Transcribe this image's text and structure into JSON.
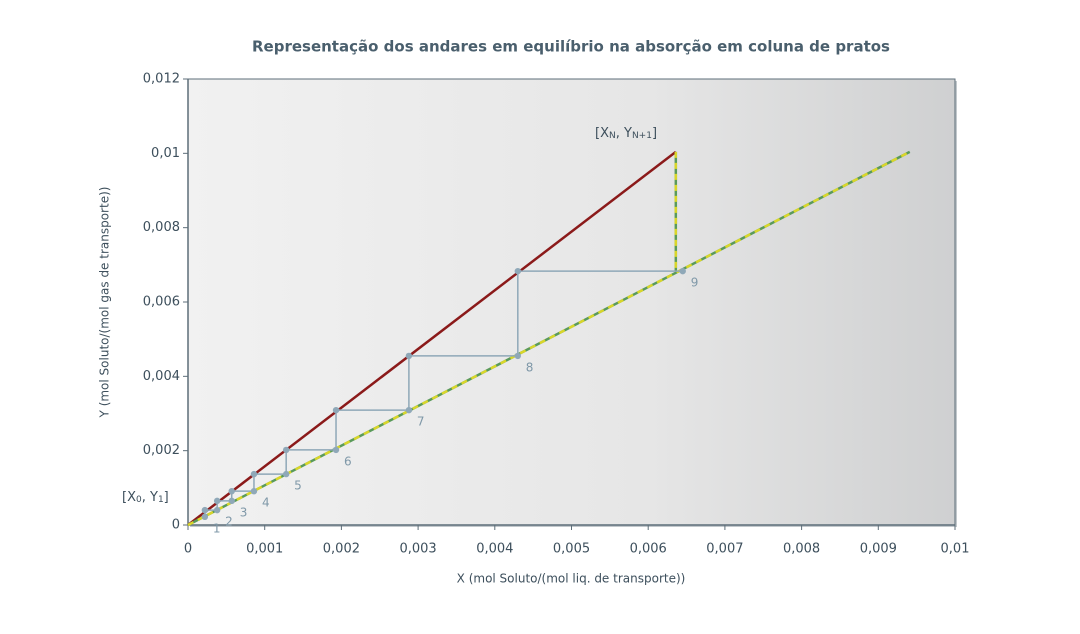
{
  "chart_data": {
    "type": "line",
    "title": "Representação dos andares em equilíbrio na absorção em coluna de pratos",
    "xlabel": "X (mol Soluto/(mol liq. de transporte))",
    "ylabel": "Y (mol Soluto/(mol gas de transporte))",
    "xlim": [
      0,
      0.01
    ],
    "ylim": [
      0,
      0.012
    ],
    "xticks": [
      0,
      {
        "value": 0.001,
        "label": "0,001"
      },
      {
        "value": 0.002,
        "label": "0,002"
      },
      {
        "value": 0.003,
        "label": "0,003"
      },
      {
        "value": 0.004,
        "label": "0,004"
      },
      {
        "value": 0.005,
        "label": "0,005"
      },
      {
        "value": 0.006,
        "label": "0,006"
      },
      {
        "value": 0.007,
        "label": "0,007"
      },
      {
        "value": 0.008,
        "label": "0,008"
      },
      {
        "value": 0.009,
        "label": "0,009"
      },
      {
        "value": 0.01,
        "label": "0,01"
      }
    ],
    "yticks": [
      0,
      {
        "value": 0.002,
        "label": "0,002"
      },
      {
        "value": 0.004,
        "label": "0,004"
      },
      {
        "value": 0.006,
        "label": "0,006"
      },
      {
        "value": 0.008,
        "label": "0,008"
      },
      {
        "value": 0.01,
        "label": "0,01"
      },
      {
        "value": 0.012,
        "label": "0,012"
      }
    ],
    "series": [
      {
        "color": "#8b1a1a",
        "dash": false,
        "x": [
          0,
          0.00636
        ],
        "values": [
          0,
          0.01004
        ]
      },
      {
        "color": "#d9d62a",
        "dash": true,
        "x": [
          0,
          0.00941
        ],
        "values": [
          0,
          0.01004
        ]
      },
      {
        "color": "#d9d62a",
        "dash": true,
        "x": [
          0.00636,
          0.00636
        ],
        "values": [
          0.01004,
          0.00683
        ]
      },
      {
        "color": "#8fa8b8",
        "dash": false,
        "markers": true,
        "x": [
          0.00645,
          0.0043,
          0.0043,
          0.00288,
          0.00288,
          0.00193,
          0.00193,
          0.00128,
          0.00128,
          0.00086,
          0.00086,
          0.00057,
          0.00057,
          0.00038,
          0.00038,
          0.00022,
          0.00022
        ],
        "values": [
          0.00683,
          0.00683,
          0.00455,
          0.00455,
          0.00309,
          0.00309,
          0.00202,
          0.00202,
          0.00137,
          0.00137,
          0.00091,
          0.00091,
          0.00065,
          0.00065,
          0.0004,
          0.0004,
          0.00022
        ]
      }
    ],
    "stages": {
      "labels": [
        1,
        2,
        3,
        4,
        5,
        6,
        7,
        8,
        9
      ],
      "x": [
        0.00022,
        0.00038,
        0.00057,
        0.00086,
        0.00128,
        0.00193,
        0.00288,
        0.0043,
        0.00645
      ],
      "values": [
        0.00022,
        0.0004,
        0.00065,
        0.00091,
        0.00137,
        0.00202,
        0.00309,
        0.00455,
        0.00683
      ]
    },
    "annotations": [
      {
        "parts": [
          "[X",
          "N",
          ", Y",
          "N+1",
          "]"
        ]
      },
      {
        "parts": [
          "[X",
          "0",
          ", Y",
          "1",
          "]"
        ]
      }
    ]
  }
}
